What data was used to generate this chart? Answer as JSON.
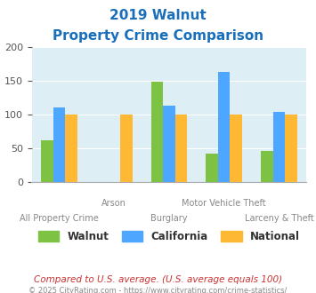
{
  "title_line1": "2019 Walnut",
  "title_line2": "Property Crime Comparison",
  "categories": [
    "All Property Crime",
    "Arson",
    "Burglary",
    "Motor Vehicle Theft",
    "Larceny & Theft"
  ],
  "walnut": [
    62,
    0,
    149,
    42,
    46
  ],
  "california": [
    110,
    0,
    113,
    163,
    103
  ],
  "national": [
    100,
    100,
    100,
    100,
    100
  ],
  "walnut_color": "#7dc242",
  "california_color": "#4da6ff",
  "national_color": "#ffb833",
  "bg_color": "#ddeef5",
  "ylim": [
    0,
    200
  ],
  "yticks": [
    0,
    50,
    100,
    150,
    200
  ],
  "xlabel_color": "#888888",
  "title_color": "#1a6fbb",
  "footnote": "Compared to U.S. average. (U.S. average equals 100)",
  "copyright": "© 2025 CityRating.com - https://www.cityrating.com/crime-statistics/",
  "footnote_color": "#cc3333",
  "copyright_color": "#888888",
  "legend_labels": [
    "Walnut",
    "California",
    "National"
  ],
  "bar_width": 0.22,
  "group_positions": [
    0,
    1,
    2,
    3,
    4
  ]
}
